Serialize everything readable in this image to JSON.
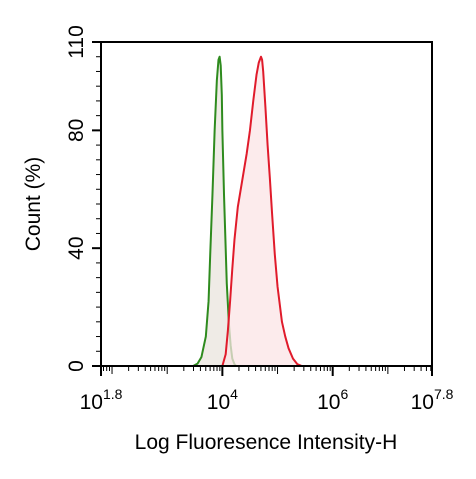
{
  "chart_data": {
    "type": "area",
    "xlabel": "Log Fluoresence Intensity-H",
    "ylabel": "Count  (%)",
    "x_scale": "log10",
    "xlim": [
      1.8,
      7.8
    ],
    "ylim": [
      0,
      110
    ],
    "x_ticks": [
      {
        "base": "10",
        "exp": "1.8",
        "value": 1.8
      },
      {
        "base": "10",
        "exp": "4",
        "value": 4
      },
      {
        "base": "10",
        "exp": "6",
        "value": 6
      },
      {
        "base": "10",
        "exp": "7.8",
        "value": 7.8
      }
    ],
    "y_ticks": [
      0,
      40,
      80,
      110
    ],
    "series": [
      {
        "color": "#2e8b1e",
        "fill": "#e9e4de",
        "x": [
          3.47,
          3.55,
          3.62,
          3.7,
          3.75,
          3.78,
          3.82,
          3.86,
          3.9,
          3.93,
          3.95,
          3.97,
          3.99,
          4.0,
          4.03,
          4.06,
          4.08,
          4.12,
          4.15,
          4.18,
          4.22,
          4.25
        ],
        "y": [
          0,
          0.8,
          3,
          10,
          22,
          38,
          58,
          80,
          97,
          104,
          105,
          102,
          92,
          80,
          58,
          40,
          28,
          14,
          7,
          2.5,
          0.6,
          0
        ]
      },
      {
        "color": "#e01b2b",
        "fill": "#fbe4e6",
        "x": [
          4.0,
          4.06,
          4.1,
          4.14,
          4.18,
          4.22,
          4.28,
          4.36,
          4.44,
          4.5,
          4.56,
          4.62,
          4.66,
          4.7,
          4.72,
          4.74,
          4.78,
          4.82,
          4.86,
          4.9,
          4.95,
          5.0,
          5.08,
          5.14,
          5.2,
          5.28,
          5.36,
          5.44
        ],
        "y": [
          0,
          4,
          12,
          22,
          33,
          43,
          54,
          63,
          72,
          80,
          90,
          99,
          103,
          105,
          104,
          100,
          88,
          75,
          64,
          52,
          38,
          27,
          15,
          10,
          6,
          2.5,
          0.6,
          0
        ]
      }
    ]
  }
}
